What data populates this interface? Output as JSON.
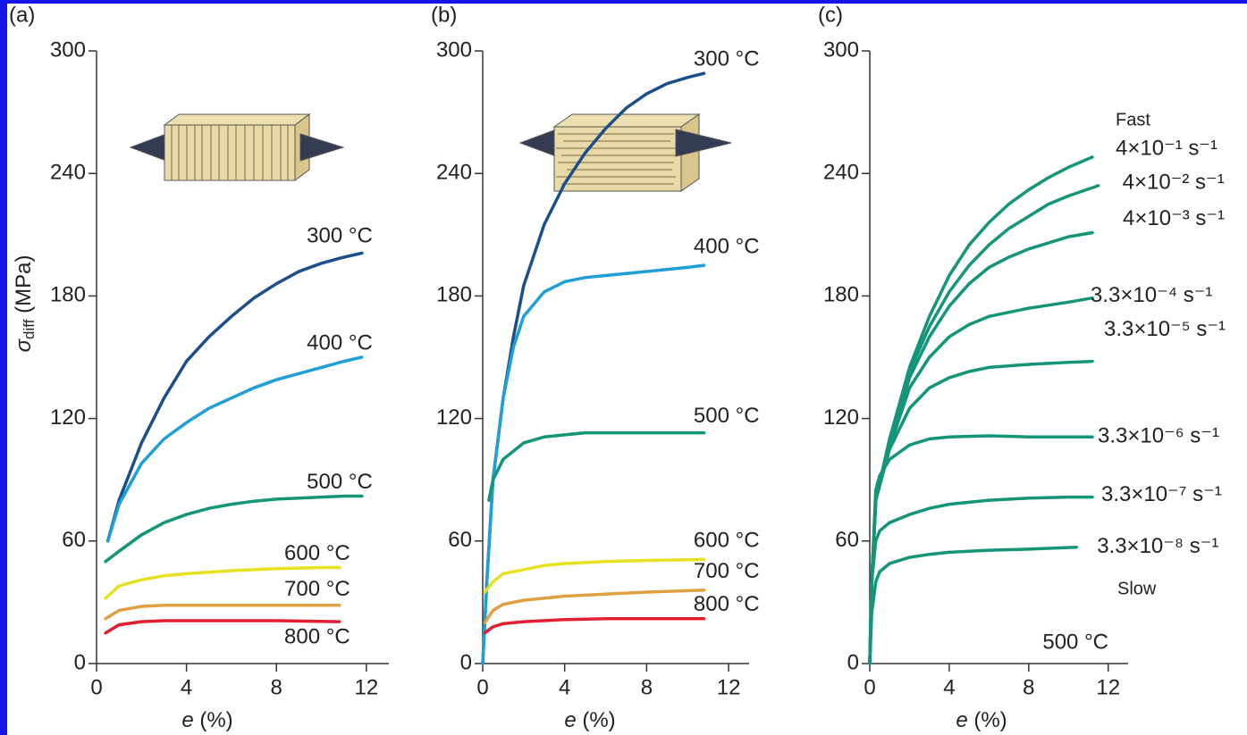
{
  "chart_data": [
    {
      "type": "line",
      "panel_label": "(a)",
      "xlabel": [
        "e",
        " (%)"
      ],
      "ylabel": [
        "σ",
        "diff",
        " (MPa)"
      ],
      "xlim": [
        0,
        13
      ],
      "ylim": [
        0,
        300
      ],
      "xticks": [
        0,
        4,
        8,
        12
      ],
      "yticks": [
        0,
        60,
        120,
        180,
        240,
        300
      ],
      "series": [
        {
          "name": "300 °C",
          "color": "#1b4f8c",
          "x": [
            0.5,
            1,
            2,
            3,
            4,
            5,
            6,
            7,
            8,
            9,
            10,
            11,
            11.8
          ],
          "values": [
            60,
            80,
            108,
            130,
            148,
            160,
            170,
            179,
            186,
            192,
            196,
            199,
            201
          ]
        },
        {
          "name": "400 °C",
          "color": "#1e9fd6",
          "x": [
            0.5,
            1,
            2,
            3,
            4,
            5,
            6,
            7,
            8,
            9,
            10,
            11,
            11.8
          ],
          "values": [
            60,
            78,
            98,
            110,
            118,
            125,
            130,
            135,
            139,
            142,
            145,
            148,
            150
          ]
        },
        {
          "name": "500 °C",
          "color": "#14957a",
          "x": [
            0.4,
            1,
            2,
            3,
            4,
            5,
            6,
            7,
            8,
            9,
            10,
            11,
            11.8
          ],
          "values": [
            50,
            55,
            63,
            69,
            73,
            76,
            78,
            79.5,
            80.5,
            81,
            81.5,
            82,
            82
          ]
        },
        {
          "name": "600 °C",
          "color": "#e6e020",
          "x": [
            0.4,
            1,
            2,
            3,
            4,
            6,
            8,
            10,
            10.8
          ],
          "values": [
            32,
            38,
            41,
            43,
            44,
            45.5,
            46.5,
            47,
            47
          ]
        },
        {
          "name": "700 °C",
          "color": "#e0a040",
          "x": [
            0.4,
            1,
            2,
            3,
            4,
            6,
            8,
            10.8
          ],
          "values": [
            22,
            26,
            28,
            28.5,
            28.5,
            28.5,
            28.5,
            28.5
          ]
        },
        {
          "name": "800 °C",
          "color": "#e02030",
          "x": [
            0.4,
            1,
            2,
            3,
            4,
            6,
            8,
            10.8
          ],
          "values": [
            15,
            19,
            20.5,
            21,
            21,
            21,
            21,
            20.5
          ]
        }
      ]
    },
    {
      "type": "line",
      "panel_label": "(b)",
      "xlabel": [
        "e",
        " (%)"
      ],
      "xlim": [
        0,
        13
      ],
      "ylim": [
        0,
        300
      ],
      "xticks": [
        0,
        4,
        8,
        12
      ],
      "yticks": [
        0,
        60,
        120,
        180,
        240,
        300
      ],
      "series": [
        {
          "name": "300 °C",
          "color": "#1b4f8c",
          "x": [
            0,
            0.2,
            0.5,
            1,
            1.5,
            2,
            3,
            4,
            5,
            6,
            7,
            8,
            9,
            10,
            10.8
          ],
          "values": [
            0,
            40,
            90,
            130,
            160,
            185,
            215,
            235,
            250,
            262,
            272,
            279,
            284,
            287,
            289
          ]
        },
        {
          "name": "400 °C",
          "color": "#1e9fd6",
          "x": [
            0,
            0.2,
            0.5,
            1,
            1.5,
            2,
            3,
            4,
            5,
            6,
            8,
            10,
            10.8
          ],
          "values": [
            0,
            40,
            90,
            130,
            155,
            170,
            182,
            187,
            189,
            190,
            192,
            194,
            195
          ]
        },
        {
          "name": "500 °C",
          "color": "#14957a",
          "x": [
            0.3,
            0.5,
            1,
            2,
            3,
            4,
            5,
            6,
            8,
            10.8
          ],
          "values": [
            80,
            90,
            100,
            108,
            111,
            112,
            113,
            113,
            113,
            113
          ]
        },
        {
          "name": "600 °C",
          "color": "#e6e020",
          "x": [
            0.1,
            0.5,
            1,
            2,
            3,
            4,
            6,
            8,
            10.8
          ],
          "values": [
            35,
            40,
            44,
            46,
            48,
            49,
            50,
            50.5,
            51
          ]
        },
        {
          "name": "700 °C",
          "color": "#e0a040",
          "x": [
            0.1,
            0.5,
            1,
            2,
            4,
            6,
            8,
            10.8
          ],
          "values": [
            20,
            26,
            29,
            31,
            33,
            34,
            35,
            36
          ]
        },
        {
          "name": "800 °C",
          "color": "#e02030",
          "x": [
            0.1,
            0.5,
            1,
            2,
            4,
            6,
            8,
            10.8
          ],
          "values": [
            15,
            18,
            19.5,
            20.5,
            21.5,
            22,
            22,
            22
          ]
        }
      ]
    },
    {
      "type": "line",
      "panel_label": "(c)",
      "xlabel": [
        "e",
        " (%)"
      ],
      "xlim": [
        0,
        13
      ],
      "ylim": [
        0,
        300
      ],
      "xticks": [
        0,
        4,
        8,
        12
      ],
      "yticks": [
        0,
        60,
        120,
        180,
        240,
        300
      ],
      "annotations": [
        "Fast",
        "Slow",
        "500 °C"
      ],
      "series": [
        {
          "name": "4×10⁻¹ s⁻¹",
          "color": "#14957a",
          "x": [
            0,
            0.1,
            0.3,
            1,
            2,
            3,
            4,
            5,
            6,
            7,
            8,
            9,
            10,
            11.2
          ],
          "values": [
            0,
            40,
            80,
            110,
            145,
            170,
            190,
            205,
            216,
            225,
            232,
            238,
            243,
            248
          ]
        },
        {
          "name": "4×10⁻² s⁻¹",
          "color": "#14957a",
          "x": [
            0,
            0.1,
            0.3,
            1,
            2,
            3,
            4,
            5,
            6,
            7,
            8,
            9,
            10,
            11.5
          ],
          "values": [
            0,
            40,
            80,
            110,
            143,
            165,
            182,
            195,
            205,
            213,
            219,
            225,
            229,
            234
          ]
        },
        {
          "name": "4×10⁻³ s⁻¹",
          "color": "#14957a",
          "x": [
            0,
            0.1,
            0.3,
            1,
            2,
            3,
            4,
            5,
            6,
            7,
            8,
            9,
            10,
            11.2
          ],
          "values": [
            0,
            40,
            80,
            108,
            140,
            160,
            175,
            186,
            194,
            199,
            203,
            206,
            209,
            211
          ]
        },
        {
          "name": "3.3×10⁻⁴ s⁻¹",
          "color": "#14957a",
          "x": [
            0,
            0.1,
            0.3,
            1,
            2,
            3,
            4,
            5,
            6,
            8,
            10,
            11.2
          ],
          "values": [
            0,
            40,
            80,
            106,
            135,
            150,
            160,
            166,
            170,
            174,
            177,
            179
          ]
        },
        {
          "name": "3.3×10⁻⁵ s⁻¹",
          "color": "#14957a",
          "x": [
            0,
            0.1,
            0.3,
            1,
            2,
            3,
            4,
            5,
            6,
            8,
            10,
            11.2
          ],
          "values": [
            0,
            40,
            80,
            105,
            125,
            135,
            140,
            143,
            145,
            146.5,
            147.5,
            148
          ]
        },
        {
          "name": "3.3×10⁻⁶ s⁻¹",
          "color": "#14957a",
          "x": [
            0,
            0.1,
            0.3,
            0.5,
            1,
            2,
            3,
            4,
            6,
            8,
            11.2
          ],
          "values": [
            0,
            40,
            85,
            92,
            100,
            107,
            110,
            111,
            111.5,
            111,
            111
          ]
        },
        {
          "name": "3.3×10⁻⁷ s⁻¹",
          "color": "#14957a",
          "x": [
            0,
            0.1,
            0.3,
            0.5,
            1,
            2,
            3,
            4,
            6,
            8,
            10,
            11.2
          ],
          "values": [
            0,
            40,
            60,
            65,
            69,
            73,
            76,
            78,
            80,
            81,
            81.5,
            81.5
          ]
        },
        {
          "name": "3.3×10⁻⁸ s⁻¹",
          "color": "#14957a",
          "x": [
            0,
            0.1,
            0.3,
            0.5,
            1,
            2,
            3,
            4,
            6,
            8,
            10.4
          ],
          "values": [
            0,
            25,
            40,
            45,
            49,
            52,
            53.5,
            54.5,
            55.5,
            56,
            57
          ]
        }
      ]
    }
  ]
}
